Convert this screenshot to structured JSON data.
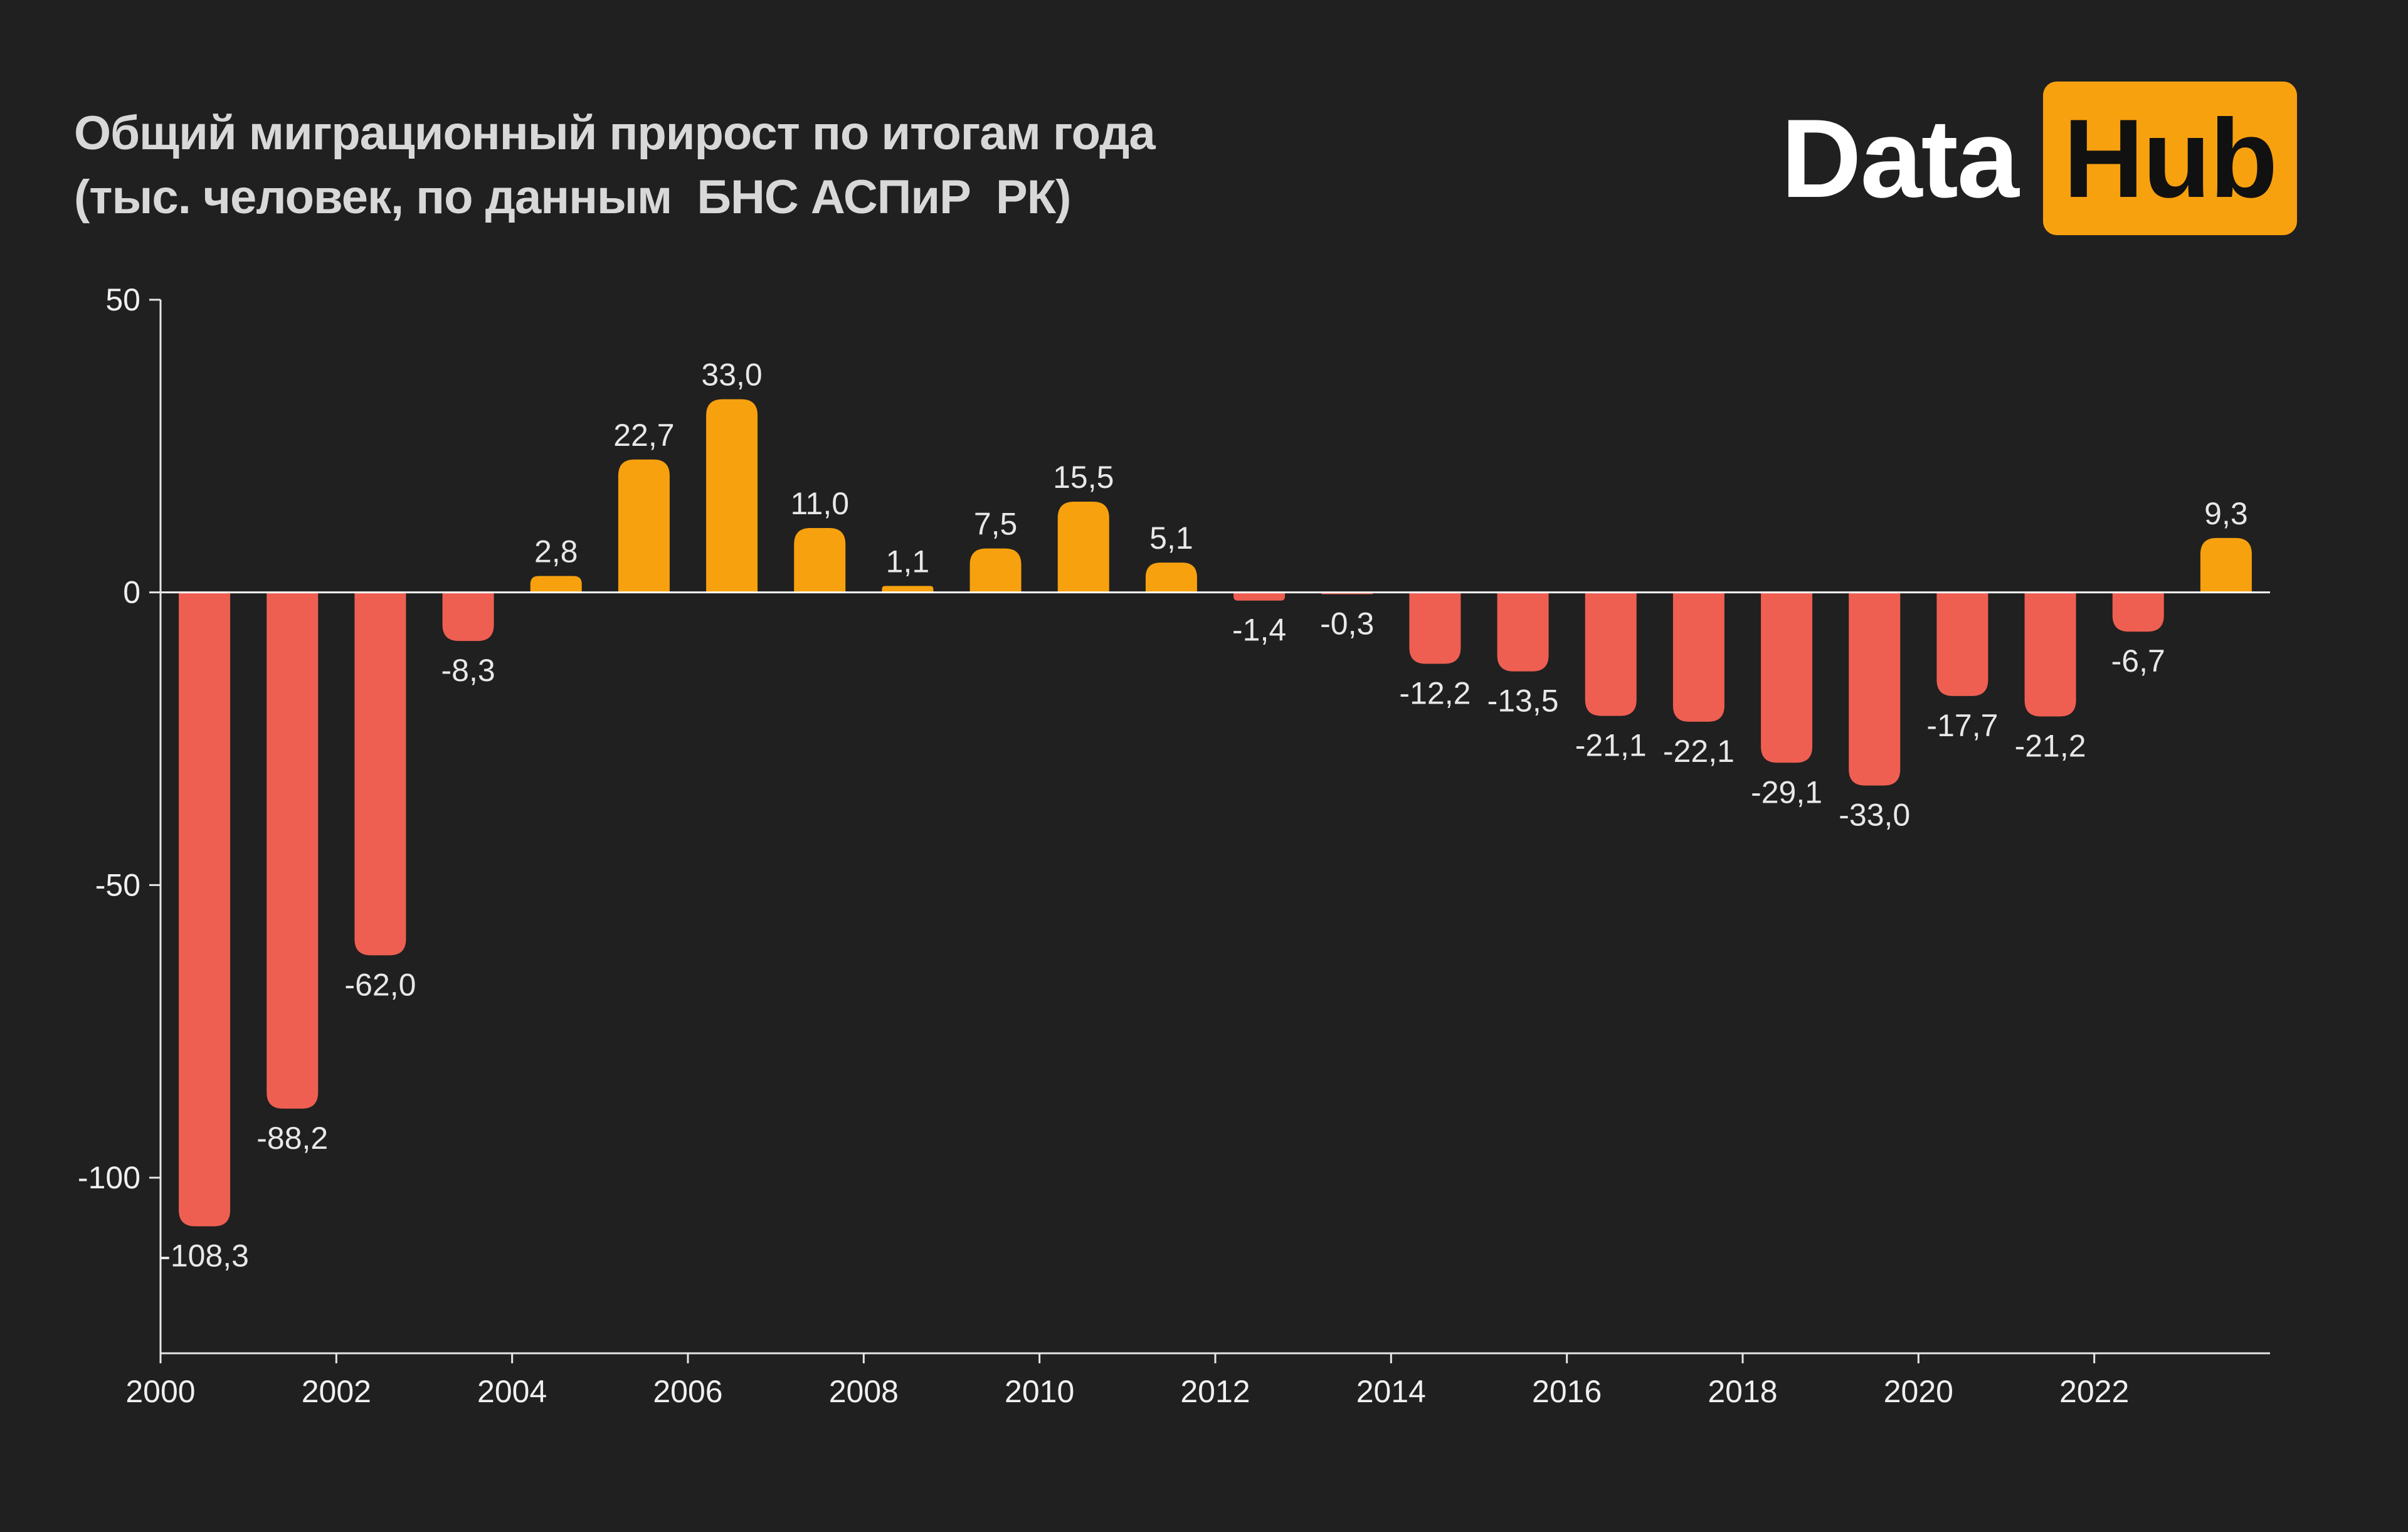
{
  "title": {
    "line1": "Общий миграционный прирост по итогам года",
    "line2": "(тыс. человек, по данным  БНС АСПиР  РК)"
  },
  "logo": {
    "part1": "Data",
    "part2": "Hub"
  },
  "colors": {
    "background": "#202020",
    "positive": "#f7a10f",
    "negative": "#ee5f52",
    "text": "#e8e8e8"
  },
  "chart_data": {
    "type": "bar",
    "title": "Общий миграционный прирост по итогам года (тыс. человек, по данным  БНС АСПиР  РК)",
    "xlabel": "",
    "ylabel": "",
    "categories": [
      "2000",
      "2001",
      "2002",
      "2003",
      "2004",
      "2005",
      "2006",
      "2007",
      "2008",
      "2009",
      "2010",
      "2011",
      "2012",
      "2013",
      "2014",
      "2015",
      "2016",
      "2017",
      "2018",
      "2019",
      "2020",
      "2021",
      "2022",
      "2023"
    ],
    "values": [
      -108.3,
      -88.2,
      -62.0,
      -8.3,
      2.8,
      22.7,
      33.0,
      11.0,
      1.1,
      7.5,
      15.5,
      5.1,
      -1.4,
      -0.3,
      -12.2,
      -13.5,
      -21.1,
      -22.1,
      -29.1,
      -33.0,
      -17.7,
      -21.2,
      -6.7,
      9.3
    ],
    "value_labels": [
      "-108,3",
      "-88,2",
      "-62,0",
      "-8,3",
      "2,8",
      "22,7",
      "33,0",
      "11,0",
      "1,1",
      "7,5",
      "15,5",
      "5,1",
      "-1,4",
      "-0,3",
      "-12,2",
      "-13,5",
      "-21,1",
      "-22,1",
      "-29,1",
      "-33,0",
      "-17,7",
      "-21,2",
      "-6,7",
      "9,3"
    ],
    "ylim": [
      -130,
      50
    ],
    "y_ticks": [
      50,
      0,
      -50,
      -100
    ],
    "y_tick_labels": [
      "50",
      "0",
      "-50",
      "-100"
    ],
    "x_ticks": [
      "2000",
      "2002",
      "2004",
      "2006",
      "2008",
      "2010",
      "2012",
      "2014",
      "2016",
      "2018",
      "2020",
      "2022"
    ],
    "grid": false,
    "legend": "none"
  }
}
